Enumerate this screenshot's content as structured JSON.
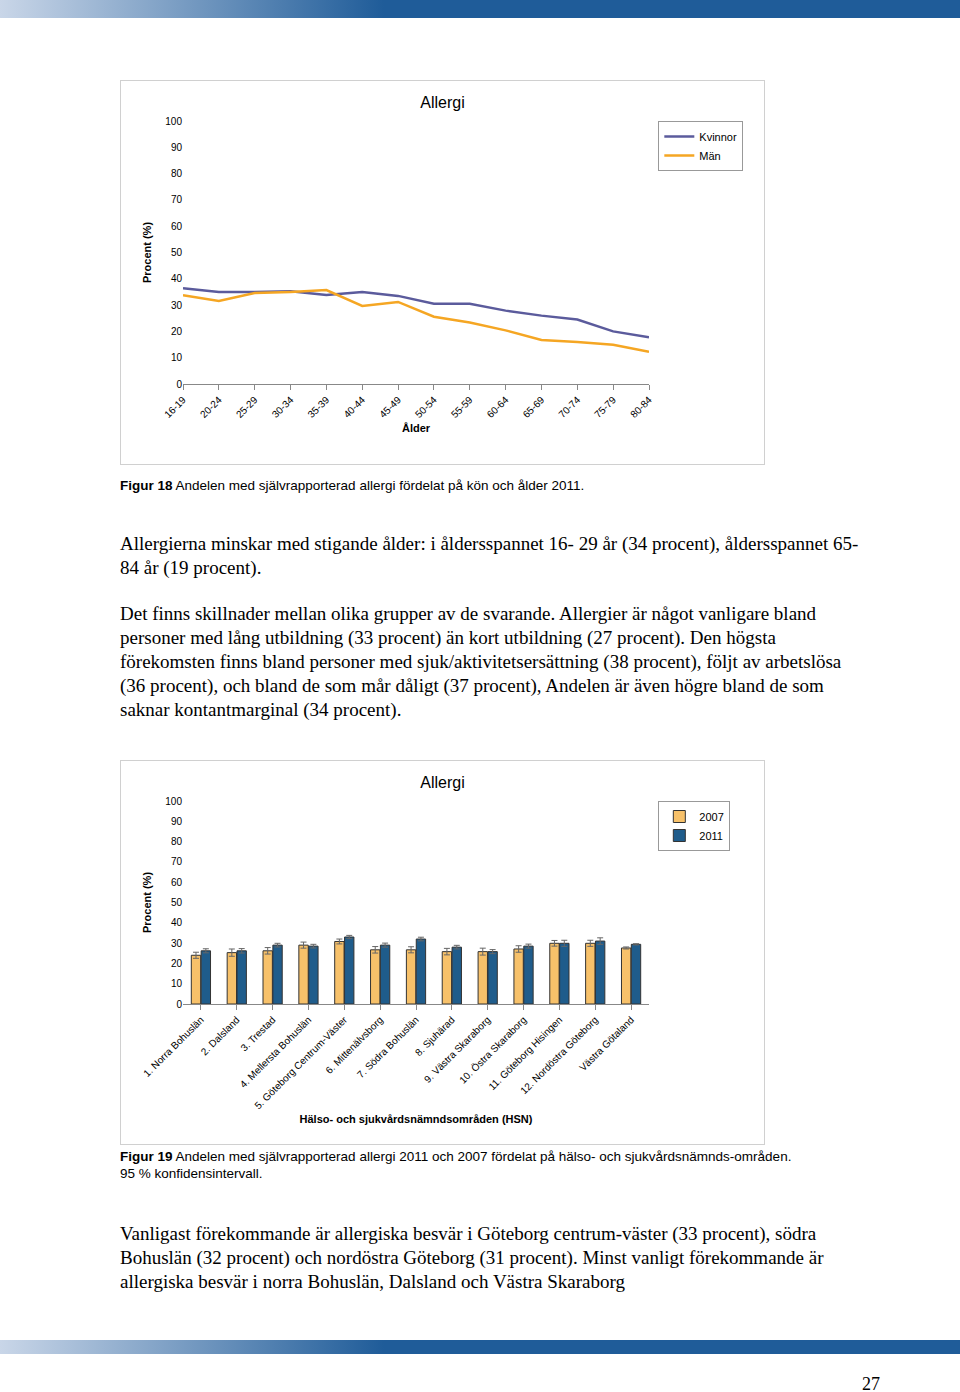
{
  "chart_data": [
    {
      "type": "line",
      "title": "Allergi",
      "xlabel": "Ålder",
      "ylabel": "Procent (%)",
      "categories": [
        "16-19",
        "20-24",
        "25-29",
        "30-34",
        "35-39",
        "40-44",
        "45-49",
        "50-54",
        "55-59",
        "60-64",
        "65-69",
        "70-74",
        "75-79",
        "80-84"
      ],
      "series": [
        {
          "name": "Kvinnor",
          "color": "#5b5b9c",
          "values": [
            36.4,
            35,
            35,
            35.3,
            33.8,
            35,
            33.5,
            30.5,
            30.5,
            27.9,
            26,
            24.5,
            20,
            17.8
          ]
        },
        {
          "name": "Män",
          "color": "#f5a623",
          "values": [
            33.8,
            31.6,
            34.6,
            35,
            35.7,
            29.7,
            31.2,
            25.6,
            23.4,
            20.4,
            16.7,
            16,
            14.9,
            12.3
          ]
        }
      ],
      "ylim": [
        0,
        100
      ],
      "yticks": [
        0,
        10,
        20,
        30,
        40,
        50,
        60,
        70,
        80,
        90,
        100
      ],
      "grid": false,
      "legend": "top right"
    },
    {
      "type": "bar",
      "title": "Allergi",
      "xlabel": "Hälso- och sjukvårdsnämndsområden (HSN)",
      "ylabel": "Procent (%)",
      "categories": [
        "1. Norra Bohuslän",
        "2. Dalsland",
        "3. Trestad",
        "4. Mellersta Bohuslän",
        "5. Göteborg Centrum-Väster",
        "6. Mittenälvsborg",
        "7. Södra Bohuslän",
        "8. Sjuhärad",
        "9. Västra Skaraborg",
        "10. Östra Skaraborg",
        "11. Göteborg Hisingen",
        "12. Nordöstra Göteborg",
        "Västra Götaland"
      ],
      "series": [
        {
          "name": "2007",
          "color": "#f7c16a",
          "values": [
            24,
            25.3,
            26.2,
            29,
            30.8,
            26.7,
            26.7,
            25.8,
            25.8,
            27.1,
            29.9,
            29.9,
            27.6
          ],
          "error": [
            1.5,
            1.8,
            1.6,
            1.5,
            1.2,
            1.6,
            1.5,
            1.6,
            1.7,
            1.6,
            1.4,
            1.5,
            0.5
          ]
        },
        {
          "name": "2011",
          "color": "#1f5c8b",
          "values": [
            26.2,
            26.2,
            29,
            28.5,
            33,
            29,
            32,
            28,
            25.8,
            28.5,
            29.9,
            31,
            29.4
          ],
          "error": [
            1.0,
            1.1,
            0.9,
            0.9,
            0.8,
            1.0,
            0.9,
            0.9,
            1.0,
            1.0,
            1.5,
            1.6,
            0.3
          ]
        }
      ],
      "ylim": [
        0,
        100
      ],
      "yticks": [
        0,
        10,
        20,
        30,
        40,
        50,
        60,
        70,
        80,
        90,
        100
      ],
      "grid": false,
      "legend": "top right"
    }
  ],
  "document": {
    "figures": [
      {
        "caption_label": "Figur 18",
        "caption_text": "Andelen med självrapporterad allergi fördelat på kön och ålder 2011.",
        "paragraphs": [
          "Allergierna minskar med stigande ålder: i åldersspannet 16- 29 år (34 procent), åldersspannet 65-84 år (19 procent).",
          "Det finns skillnader mellan olika grupper av de svarande. Allergier är något vanligare bland personer med lång utbildning (33 procent) än kort utbildning (27 procent). Den högsta förekomsten finns bland personer med sjuk/aktivitetsersättning (38 procent), följt av arbetslösa (36 procent), och bland de som mår dåligt (37 procent), Andelen är även högre bland de som saknar kontantmarginal (34 procent)."
        ]
      },
      {
        "caption_label": "Figur 19",
        "caption_text": "Andelen med självrapporterad allergi 2011 och 2007 fördelat på hälso- och sjukvårdsnämnds-områden. 95 % konfidensintervall.",
        "paragraphs": [
          "Vanligast förekommande är allergiska besvär i Göteborg centrum-väster (33 procent), södra Bohuslän (32 procent) och nordöstra Göteborg (31 procent). Minst vanligt förekommande är allergiska besvär i norra Bohuslän, Dalsland och Västra Skaraborg"
        ]
      }
    ],
    "page_number": "27"
  }
}
